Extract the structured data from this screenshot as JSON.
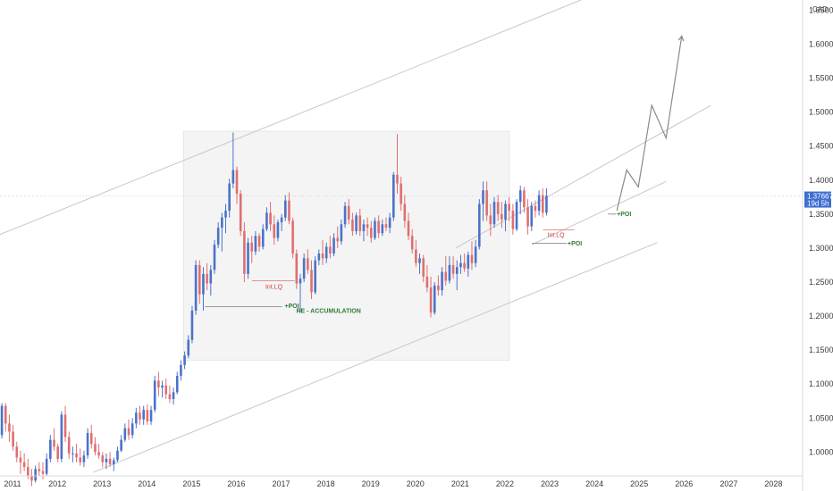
{
  "chart_data": {
    "type": "candlestick",
    "currency": "CAD",
    "last_price": "1.37667",
    "countdown": "19d 5h",
    "colors": {
      "up": "#4a72c8",
      "down": "#df6f70",
      "box": "#f4f4f4",
      "line": "#c8c8c8",
      "projection": "#8a8a8a"
    },
    "ylim": [
      0.965,
      1.665
    ],
    "xlim": [
      2010.72,
      2028.65
    ],
    "y_ticks": [
      "1.65000",
      "1.60000",
      "1.55000",
      "1.50000",
      "1.45000",
      "1.40000",
      "1.35000",
      "1.30000",
      "1.25000",
      "1.20000",
      "1.15000",
      "1.10000",
      "1.05000",
      "1.00000"
    ],
    "y_tick_values": [
      1.65,
      1.6,
      1.55,
      1.5,
      1.45,
      1.4,
      1.35,
      1.3,
      1.25,
      1.2,
      1.15,
      1.1,
      1.05,
      1.0
    ],
    "x_ticks": [
      "2011",
      "2012",
      "2013",
      "2014",
      "2015",
      "2016",
      "2017",
      "2018",
      "2019",
      "2020",
      "2021",
      "2022",
      "2023",
      "2024",
      "2025",
      "2026",
      "2027",
      "2028"
    ],
    "x_tick_values": [
      2011,
      2012,
      2013,
      2014,
      2015,
      2016,
      2017,
      2018,
      2019,
      2020,
      2021,
      2022,
      2023,
      2024,
      2025,
      2026,
      2027,
      2028
    ],
    "candles": [
      [
        1.025,
        1.072,
        1.02,
        1.068
      ],
      [
        1.068,
        1.072,
        1.03,
        1.042
      ],
      [
        1.042,
        1.055,
        1.015,
        1.03
      ],
      [
        1.03,
        1.04,
        1.002,
        1.008
      ],
      [
        1.008,
        1.015,
        0.985,
        0.992
      ],
      [
        0.992,
        1.002,
        0.968,
        0.985
      ],
      [
        0.985,
        0.998,
        0.972,
        0.978
      ],
      [
        0.978,
        0.99,
        0.96,
        0.965
      ],
      [
        0.965,
        0.975,
        0.95,
        0.958
      ],
      [
        0.958,
        0.98,
        0.955,
        0.975
      ],
      [
        0.975,
        0.985,
        0.965,
        0.972
      ],
      [
        0.972,
        0.985,
        0.96,
        0.968
      ],
      [
        0.968,
        0.998,
        0.965,
        0.99
      ],
      [
        0.99,
        1.025,
        0.985,
        1.018
      ],
      [
        1.018,
        1.035,
        1.002,
        1.008
      ],
      [
        1.008,
        1.012,
        0.985,
        0.99
      ],
      [
        0.99,
        1.06,
        0.985,
        1.055
      ],
      [
        1.055,
        1.068,
        1.015,
        1.022
      ],
      [
        1.022,
        1.03,
        0.99,
        0.998
      ],
      [
        0.998,
        1.008,
        0.985,
        0.998
      ],
      [
        0.998,
        1.012,
        0.985,
        0.992
      ],
      [
        0.992,
        1.005,
        0.98,
        0.985
      ],
      [
        0.985,
        1.002,
        0.978,
        0.995
      ],
      [
        0.995,
        1.035,
        0.99,
        1.028
      ],
      [
        1.028,
        1.04,
        1.005,
        1.012
      ],
      [
        1.012,
        1.022,
        0.995,
        1.0
      ],
      [
        1.0,
        1.012,
        0.99,
        0.995
      ],
      [
        0.995,
        1.0,
        0.978,
        0.985
      ],
      [
        0.985,
        0.998,
        0.975,
        0.99
      ],
      [
        0.99,
        1.0,
        0.978,
        0.982
      ],
      [
        0.982,
        0.992,
        0.972,
        0.988
      ],
      [
        0.988,
        1.008,
        0.985,
        1.002
      ],
      [
        1.002,
        1.025,
        1.0,
        1.018
      ],
      [
        1.018,
        1.042,
        1.015,
        1.035
      ],
      [
        1.035,
        1.048,
        1.018,
        1.025
      ],
      [
        1.025,
        1.05,
        1.02,
        1.042
      ],
      [
        1.042,
        1.065,
        1.035,
        1.058
      ],
      [
        1.058,
        1.068,
        1.04,
        1.048
      ],
      [
        1.048,
        1.068,
        1.04,
        1.062
      ],
      [
        1.062,
        1.07,
        1.04,
        1.045
      ],
      [
        1.045,
        1.068,
        1.04,
        1.062
      ],
      [
        1.062,
        1.112,
        1.058,
        1.105
      ],
      [
        1.105,
        1.118,
        1.082,
        1.095
      ],
      [
        1.095,
        1.105,
        1.08,
        1.098
      ],
      [
        1.098,
        1.108,
        1.078,
        1.085
      ],
      [
        1.085,
        1.098,
        1.072,
        1.078
      ],
      [
        1.078,
        1.095,
        1.07,
        1.088
      ],
      [
        1.088,
        1.118,
        1.085,
        1.112
      ],
      [
        1.112,
        1.135,
        1.105,
        1.128
      ],
      [
        1.128,
        1.148,
        1.122,
        1.142
      ],
      [
        1.142,
        1.172,
        1.138,
        1.165
      ],
      [
        1.165,
        1.215,
        1.16,
        1.208
      ],
      [
        1.208,
        1.282,
        1.202,
        1.275
      ],
      [
        1.275,
        1.282,
        1.218,
        1.232
      ],
      [
        1.232,
        1.272,
        1.208,
        1.262
      ],
      [
        1.262,
        1.278,
        1.238,
        1.248
      ],
      [
        1.248,
        1.275,
        1.23,
        1.268
      ],
      [
        1.268,
        1.312,
        1.262,
        1.305
      ],
      [
        1.305,
        1.338,
        1.3,
        1.33
      ],
      [
        1.33,
        1.352,
        1.295,
        1.345
      ],
      [
        1.345,
        1.365,
        1.322,
        1.355
      ],
      [
        1.355,
        1.402,
        1.345,
        1.395
      ],
      [
        1.395,
        1.47,
        1.388,
        1.415
      ],
      [
        1.415,
        1.42,
        1.365,
        1.38
      ],
      [
        1.38,
        1.385,
        1.318,
        1.325
      ],
      [
        1.325,
        1.338,
        1.25,
        1.262
      ],
      [
        1.262,
        1.315,
        1.255,
        1.308
      ],
      [
        1.308,
        1.318,
        1.278,
        1.295
      ],
      [
        1.295,
        1.325,
        1.29,
        1.318
      ],
      [
        1.318,
        1.322,
        1.295,
        1.302
      ],
      [
        1.302,
        1.335,
        1.298,
        1.328
      ],
      [
        1.328,
        1.36,
        1.325,
        1.352
      ],
      [
        1.352,
        1.368,
        1.325,
        1.335
      ],
      [
        1.335,
        1.348,
        1.305,
        1.315
      ],
      [
        1.315,
        1.342,
        1.31,
        1.338
      ],
      [
        1.338,
        1.35,
        1.325,
        1.345
      ],
      [
        1.345,
        1.378,
        1.34,
        1.37
      ],
      [
        1.37,
        1.382,
        1.335,
        1.34
      ],
      [
        1.34,
        1.345,
        1.285,
        1.292
      ],
      [
        1.292,
        1.298,
        1.24,
        1.248
      ],
      [
        1.248,
        1.262,
        1.205,
        1.255
      ],
      [
        1.255,
        1.292,
        1.25,
        1.285
      ],
      [
        1.285,
        1.298,
        1.262,
        1.268
      ],
      [
        1.268,
        1.282,
        1.225,
        1.235
      ],
      [
        1.235,
        1.288,
        1.232,
        1.282
      ],
      [
        1.282,
        1.298,
        1.275,
        1.292
      ],
      [
        1.292,
        1.312,
        1.275,
        1.285
      ],
      [
        1.285,
        1.308,
        1.278,
        1.302
      ],
      [
        1.302,
        1.318,
        1.285,
        1.292
      ],
      [
        1.292,
        1.322,
        1.288,
        1.315
      ],
      [
        1.315,
        1.332,
        1.3,
        1.31
      ],
      [
        1.31,
        1.342,
        1.305,
        1.335
      ],
      [
        1.335,
        1.368,
        1.33,
        1.362
      ],
      [
        1.362,
        1.372,
        1.335,
        1.342
      ],
      [
        1.342,
        1.352,
        1.318,
        1.325
      ],
      [
        1.325,
        1.352,
        1.32,
        1.348
      ],
      [
        1.348,
        1.358,
        1.318,
        1.325
      ],
      [
        1.325,
        1.342,
        1.31,
        1.335
      ],
      [
        1.335,
        1.345,
        1.318,
        1.33
      ],
      [
        1.33,
        1.34,
        1.308,
        1.315
      ],
      [
        1.315,
        1.345,
        1.312,
        1.34
      ],
      [
        1.34,
        1.348,
        1.315,
        1.322
      ],
      [
        1.322,
        1.342,
        1.318,
        1.335
      ],
      [
        1.335,
        1.345,
        1.325,
        1.33
      ],
      [
        1.33,
        1.352,
        1.322,
        1.345
      ],
      [
        1.345,
        1.412,
        1.34,
        1.408
      ],
      [
        1.408,
        1.468,
        1.38,
        1.395
      ],
      [
        1.395,
        1.405,
        1.355,
        1.365
      ],
      [
        1.365,
        1.378,
        1.33,
        1.34
      ],
      [
        1.34,
        1.352,
        1.312,
        1.318
      ],
      [
        1.318,
        1.328,
        1.292,
        1.298
      ],
      [
        1.298,
        1.312,
        1.272,
        1.278
      ],
      [
        1.278,
        1.292,
        1.262,
        1.285
      ],
      [
        1.285,
        1.29,
        1.25,
        1.258
      ],
      [
        1.258,
        1.275,
        1.235,
        1.242
      ],
      [
        1.242,
        1.258,
        1.198,
        1.205
      ],
      [
        1.205,
        1.25,
        1.202,
        1.245
      ],
      [
        1.245,
        1.26,
        1.23,
        1.238
      ],
      [
        1.238,
        1.272,
        1.23,
        1.265
      ],
      [
        1.265,
        1.288,
        1.245,
        1.252
      ],
      [
        1.252,
        1.288,
        1.248,
        1.275
      ],
      [
        1.275,
        1.288,
        1.255,
        1.262
      ],
      [
        1.262,
        1.282,
        1.238,
        1.272
      ],
      [
        1.272,
        1.29,
        1.262,
        1.278
      ],
      [
        1.278,
        1.292,
        1.265,
        1.27
      ],
      [
        1.27,
        1.295,
        1.258,
        1.29
      ],
      [
        1.29,
        1.31,
        1.268,
        1.278
      ],
      [
        1.278,
        1.312,
        1.272,
        1.302
      ],
      [
        1.302,
        1.372,
        1.298,
        1.365
      ],
      [
        1.365,
        1.398,
        1.34,
        1.385
      ],
      [
        1.385,
        1.398,
        1.34,
        1.348
      ],
      [
        1.348,
        1.365,
        1.318,
        1.335
      ],
      [
        1.335,
        1.375,
        1.33,
        1.368
      ],
      [
        1.368,
        1.378,
        1.34,
        1.35
      ],
      [
        1.35,
        1.368,
        1.33,
        1.342
      ],
      [
        1.342,
        1.37,
        1.325,
        1.365
      ],
      [
        1.365,
        1.375,
        1.34,
        1.355
      ],
      [
        1.355,
        1.365,
        1.32,
        1.328
      ],
      [
        1.328,
        1.372,
        1.325,
        1.368
      ],
      [
        1.368,
        1.392,
        1.35,
        1.385
      ],
      [
        1.385,
        1.39,
        1.352,
        1.36
      ],
      [
        1.36,
        1.372,
        1.32,
        1.332
      ],
      [
        1.332,
        1.368,
        1.325,
        1.362
      ],
      [
        1.362,
        1.37,
        1.345,
        1.355
      ],
      [
        1.355,
        1.385,
        1.348,
        1.378
      ],
      [
        1.378,
        1.388,
        1.345,
        1.352
      ],
      [
        1.352,
        1.388,
        1.348,
        1.377
      ]
    ],
    "projection": [
      [
        2024.5,
        1.355
      ],
      [
        2024.72,
        1.415
      ],
      [
        2024.98,
        1.39
      ],
      [
        2025.28,
        1.51
      ],
      [
        2025.6,
        1.462
      ],
      [
        2025.95,
        1.612
      ]
    ],
    "channel_upper": [
      [
        2010.72,
        1.32
      ],
      [
        2023.7,
        1.665
      ]
    ],
    "channel_mid": [
      [
        2020.9,
        1.3
      ],
      [
        2026.6,
        1.51
      ]
    ],
    "channel_lower": [
      [
        2012.8,
        0.97
      ],
      [
        2025.4,
        1.308
      ]
    ],
    "channel_lower_2": [
      [
        2022.6,
        1.305
      ],
      [
        2025.6,
        1.398
      ]
    ],
    "range_box": {
      "x0": 2014.82,
      "x1": 2022.1,
      "y0": 1.135,
      "y1": 1.472
    },
    "box_label": "RE - ACCUMULATION",
    "annotations": [
      {
        "text": "+POI",
        "style": "green",
        "x": 2017.08,
        "y": 1.212,
        "line": [
          2015.3,
          2017.02,
          1.214
        ]
      },
      {
        "text": "Int.LQ",
        "style": "red",
        "x": 2016.65,
        "y": 1.24,
        "line": [
          2016.35,
          2017.3,
          1.252
        ]
      },
      {
        "text": "+POI",
        "style": "green",
        "x": 2023.4,
        "y": 1.304,
        "line": [
          2022.6,
          2023.38,
          1.307
        ]
      },
      {
        "text": "Int.LQ",
        "style": "red",
        "x": 2022.95,
        "y": 1.316,
        "line": [
          2022.85,
          2023.55,
          1.327
        ]
      },
      {
        "text": "+POI",
        "style": "green",
        "x": 2024.5,
        "y": 1.347,
        "line": [
          2024.3,
          2024.48,
          1.35
        ]
      }
    ]
  }
}
